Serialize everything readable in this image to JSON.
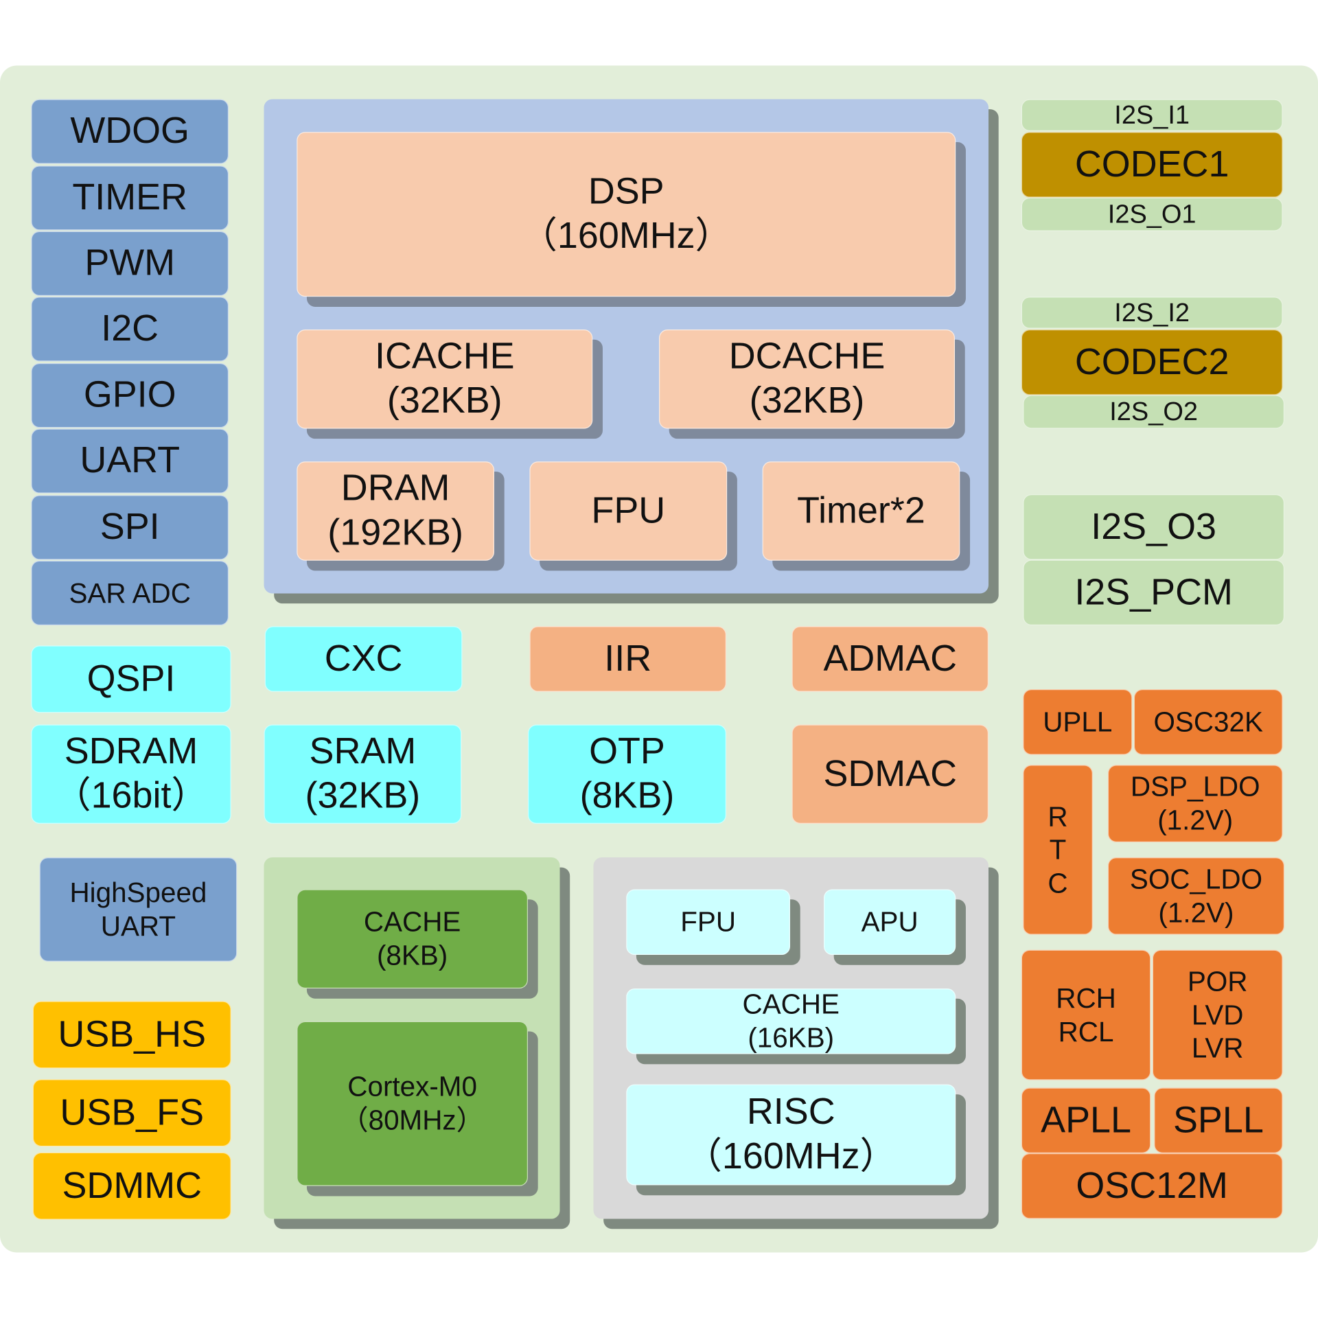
{
  "colors": {
    "background": "#e2eed9",
    "peripheral_blue": "#7aa0cd",
    "cyan": "#80ffff",
    "gold": "#ffc000",
    "dsp_panel": "#b4c7e7",
    "peach": "#f8cbad",
    "salmon": "#f4b183",
    "green_panel": "#c5e0b4",
    "green": "#70ad47",
    "grey_panel": "#d9d9d9",
    "light_cyan": "#ccffff",
    "codec": "#bf9000",
    "orange": "#ed7d31"
  },
  "blocks": {
    "wdog": [
      "WDOG"
    ],
    "timer": [
      "TIMER"
    ],
    "pwm": [
      "PWM"
    ],
    "i2c": [
      "I2C"
    ],
    "gpio": [
      "GPIO"
    ],
    "uart": [
      "UART"
    ],
    "spi": [
      "SPI"
    ],
    "sar_adc": [
      "SAR ADC"
    ],
    "qspi": [
      "QSPI"
    ],
    "sdram": [
      "SDRAM",
      "（16bit）"
    ],
    "hs_uart": [
      "HighSpeed",
      "UART"
    ],
    "usb_hs": [
      "USB_HS"
    ],
    "usb_fs": [
      "USB_FS"
    ],
    "sdmmc": [
      "SDMMC"
    ],
    "dsp": [
      "DSP",
      "（160MHz）"
    ],
    "icache": [
      "ICACHE",
      "(32KB)"
    ],
    "dcache": [
      "DCACHE",
      "(32KB)"
    ],
    "dram": [
      "DRAM",
      "(192KB)"
    ],
    "dsp_fpu": [
      "FPU"
    ],
    "timer2": [
      "Timer*2"
    ],
    "cxc": [
      "CXC"
    ],
    "iir": [
      "IIR"
    ],
    "admac": [
      "ADMAC"
    ],
    "sram": [
      "SRAM",
      "(32KB)"
    ],
    "otp": [
      "OTP",
      "(8KB)"
    ],
    "sdmac": [
      "SDMAC"
    ],
    "m0_cache": [
      "CACHE",
      "(8KB)"
    ],
    "cortex_m0": [
      "Cortex-M0",
      "（80MHz）"
    ],
    "risc_fpu": [
      "FPU"
    ],
    "apu": [
      "APU"
    ],
    "risc_cache": [
      "CACHE",
      "(16KB)"
    ],
    "risc": [
      "RISC",
      "（160MHz）"
    ],
    "i2s_i1": [
      "I2S_I1"
    ],
    "codec1": [
      "CODEC1"
    ],
    "i2s_o1": [
      "I2S_O1"
    ],
    "i2s_i2": [
      "I2S_I2"
    ],
    "codec2": [
      "CODEC2"
    ],
    "i2s_o2": [
      "I2S_O2"
    ],
    "i2s_o3": [
      "I2S_O3"
    ],
    "i2s_pcm": [
      "I2S_PCM"
    ],
    "upll": [
      "UPLL"
    ],
    "osc32k": [
      "OSC32K"
    ],
    "rtc": [
      "R",
      "T",
      "C"
    ],
    "dsp_ldo": [
      "DSP_LDO",
      "(1.2V)"
    ],
    "soc_ldo": [
      "SOC_LDO",
      "(1.2V)"
    ],
    "rch_rcl": [
      "RCH",
      "RCL"
    ],
    "por_lvd_lvr": [
      "POR",
      "LVD",
      "LVR"
    ],
    "apll": [
      "APLL"
    ],
    "spll": [
      "SPLL"
    ],
    "osc12m": [
      "OSC12M"
    ]
  }
}
